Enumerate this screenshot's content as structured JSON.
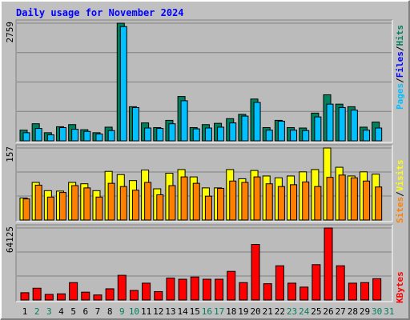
{
  "title": "Daily usage for November 2024",
  "colors": {
    "background": "#C0C0C0",
    "plot_background": "#BBBBBB",
    "title_text": "#0000FF",
    "hits": "#00805C",
    "files": "#0000FF",
    "pages": "#00C0FF",
    "visits": "#FFFF00",
    "sites": "#FF8000",
    "kbytes": "#FF0000",
    "weekday_label": "#000000",
    "weekend_label": "#00805C",
    "separator": "#000000"
  },
  "chart_data": [
    {
      "type": "bar",
      "panel": "hits-files-pages",
      "ymax_label": "2759",
      "ylim": [
        0,
        2759
      ],
      "legend": [
        {
          "text": "Hits",
          "color": "#00805C"
        },
        {
          "text": "Files",
          "color": "#0000FF"
        },
        {
          "text": "Pages",
          "color": "#00C0FF"
        }
      ],
      "legend_separator": "/",
      "series": [
        {
          "name": "Hits",
          "values": [
            250,
            400,
            190,
            330,
            380,
            260,
            190,
            320,
            2759,
            800,
            420,
            310,
            480,
            1040,
            310,
            380,
            410,
            520,
            620,
            980,
            310,
            480,
            310,
            300,
            650,
            1080,
            860,
            800,
            320,
            440,
            0
          ]
        },
        {
          "name": "Pages",
          "values": [
            190,
            290,
            140,
            310,
            270,
            220,
            160,
            240,
            2680,
            780,
            300,
            290,
            400,
            940,
            280,
            300,
            320,
            420,
            580,
            900,
            250,
            460,
            250,
            240,
            560,
            860,
            780,
            720,
            250,
            300,
            0
          ]
        }
      ]
    },
    {
      "type": "bar",
      "panel": "visits-sites",
      "ymax_label": "157",
      "ylim": [
        0,
        157
      ],
      "legend": [
        {
          "text": "Visits",
          "color": "#FFFF00"
        },
        {
          "text": "Sites",
          "color": "#FF8000"
        }
      ],
      "legend_separator": "/",
      "series": [
        {
          "name": "Visits",
          "values": [
            48,
            82,
            64,
            63,
            82,
            79,
            64,
            106,
            99,
            86,
            109,
            68,
            102,
            110,
            94,
            70,
            70,
            110,
            90,
            108,
            96,
            92,
            96,
            105,
            110,
            157,
            115,
            96,
            105,
            100,
            0
          ]
        },
        {
          "name": "Sites",
          "values": [
            46,
            76,
            50,
            60,
            75,
            70,
            50,
            80,
            73,
            65,
            82,
            55,
            75,
            94,
            80,
            52,
            69,
            85,
            82,
            94,
            79,
            73,
            77,
            83,
            73,
            93,
            98,
            92,
            85,
            72,
            0
          ]
        }
      ]
    },
    {
      "type": "bar",
      "panel": "kbytes",
      "ymax_label": "64125",
      "ylim": [
        0,
        64125
      ],
      "legend": [
        {
          "text": "KBytes",
          "color": "#FF0000"
        }
      ],
      "series": [
        {
          "name": "KBytes",
          "values": [
            6500,
            10500,
            5000,
            5500,
            15500,
            7000,
            4500,
            10000,
            22000,
            8500,
            15000,
            7500,
            19500,
            18500,
            20500,
            18500,
            18500,
            25500,
            15500,
            49500,
            14500,
            30500,
            15000,
            11500,
            31500,
            64125,
            30500,
            15000,
            15500,
            19000,
            0
          ]
        }
      ]
    }
  ],
  "x_labels": [
    {
      "text": "1",
      "weekend": false
    },
    {
      "text": "2",
      "weekend": true
    },
    {
      "text": "3",
      "weekend": true
    },
    {
      "text": "4",
      "weekend": false
    },
    {
      "text": "5",
      "weekend": false
    },
    {
      "text": "6",
      "weekend": false
    },
    {
      "text": "7",
      "weekend": false
    },
    {
      "text": "8",
      "weekend": false
    },
    {
      "text": "9",
      "weekend": true
    },
    {
      "text": "10",
      "weekend": true
    },
    {
      "text": "11",
      "weekend": false
    },
    {
      "text": "12",
      "weekend": false
    },
    {
      "text": "13",
      "weekend": false
    },
    {
      "text": "14",
      "weekend": false
    },
    {
      "text": "15",
      "weekend": false
    },
    {
      "text": "16",
      "weekend": true
    },
    {
      "text": "17",
      "weekend": true
    },
    {
      "text": "18",
      "weekend": false
    },
    {
      "text": "19",
      "weekend": false
    },
    {
      "text": "20",
      "weekend": false
    },
    {
      "text": "21",
      "weekend": false
    },
    {
      "text": "22",
      "weekend": false
    },
    {
      "text": "23",
      "weekend": true
    },
    {
      "text": "24",
      "weekend": true
    },
    {
      "text": "25",
      "weekend": false
    },
    {
      "text": "26",
      "weekend": false
    },
    {
      "text": "27",
      "weekend": false
    },
    {
      "text": "28",
      "weekend": false
    },
    {
      "text": "29",
      "weekend": false
    },
    {
      "text": "30",
      "weekend": true
    },
    {
      "text": "31",
      "weekend": true
    }
  ]
}
